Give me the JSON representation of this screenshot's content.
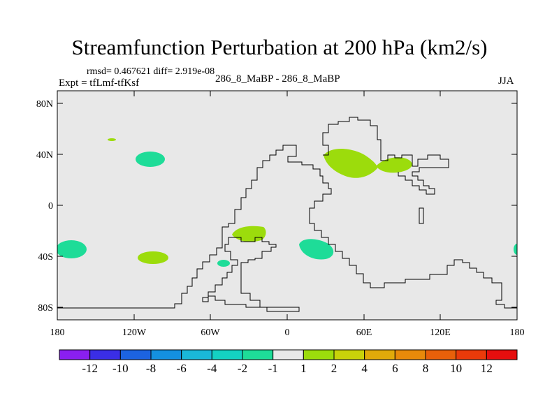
{
  "title": "Streamfunction Perturbation at 200 hPa (km2/s)",
  "stats": "rmsd= 0.467621 diff= 2.919e-08",
  "experiment": "Expt = tfLmf-tfKsf",
  "comparison": "286_8_MaBP - 286_8_MaBP",
  "season": "JJA",
  "map": {
    "lat_ticks": [
      "80N",
      "40N",
      "0",
      "40S",
      "80S"
    ],
    "lon_ticks": [
      "180",
      "120W",
      "60W",
      "0",
      "60E",
      "120E",
      "180"
    ]
  },
  "colorbar": {
    "labels": [
      "-12",
      "-10",
      "-8",
      "-6",
      "-4",
      "-2",
      "-1",
      "1",
      "2",
      "4",
      "6",
      "8",
      "10",
      "12"
    ],
    "colors": [
      "#8a1ff0",
      "#3a2ee6",
      "#1c63e0",
      "#1490e0",
      "#1ab8d8",
      "#14d2c2",
      "#1edc98",
      "#e8e8e8",
      "#9cdc0c",
      "#c8d20a",
      "#e0aa0a",
      "#e88a0a",
      "#e8600a",
      "#ea3a0a",
      "#e60e0e"
    ]
  },
  "features": [
    {
      "name": "positive anomaly over central Asia",
      "class": "2"
    },
    {
      "name": "positive anomaly over Southern Ocean",
      "class": "1"
    },
    {
      "name": "negative anomaly over central Pacific",
      "class": "-1"
    }
  ]
}
